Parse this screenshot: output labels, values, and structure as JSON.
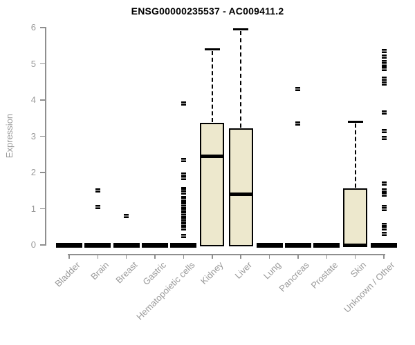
{
  "header": {
    "title": "ENSG00000235537 - AC009411.2"
  },
  "chart_data": {
    "type": "boxplot",
    "title": "ENSG00000235537 - AC009411.2",
    "xlabel": "",
    "ylabel": "Expression",
    "ylim": [
      0,
      6
    ],
    "yticks": [
      0,
      1,
      2,
      3,
      4,
      5,
      6
    ],
    "grid": "off",
    "box_fill_color": "#EDE8CD",
    "box_border_color": "#000000",
    "axis_color": "#8f8f8f",
    "label_color": "#999999",
    "categories": [
      "Bladder",
      "Brain",
      "Breast",
      "Gastric",
      "Hematopoietic cells",
      "Kidney",
      "Liver",
      "Lung",
      "Pancreas",
      "Prostate",
      "Skin",
      "Unknown / Other"
    ],
    "series": [
      {
        "name": "Bladder",
        "q1": 0,
        "median": 0,
        "q3": 0,
        "whisker_low": 0,
        "whisker_high": 0,
        "outliers": []
      },
      {
        "name": "Brain",
        "q1": 0,
        "median": 0,
        "q3": 0,
        "whisker_low": 0,
        "whisker_high": 0,
        "outliers": [
          1.5,
          1.05
        ]
      },
      {
        "name": "Breast",
        "q1": 0,
        "median": 0,
        "q3": 0,
        "whisker_low": 0,
        "whisker_high": 0,
        "outliers": [
          0.8
        ]
      },
      {
        "name": "Gastric",
        "q1": 0,
        "median": 0,
        "q3": 0,
        "whisker_low": 0,
        "whisker_high": 0,
        "outliers": []
      },
      {
        "name": "Hematopoietic cells",
        "q1": 0,
        "median": 0,
        "q3": 0,
        "whisker_low": 0,
        "whisker_high": 0,
        "outliers": [
          3.9,
          2.35,
          1.95,
          1.85,
          1.55,
          1.5,
          1.45,
          1.3,
          1.25,
          1.15,
          1.1,
          1.05,
          1.0,
          0.95,
          0.9,
          0.85,
          0.8,
          0.75,
          0.7,
          0.65,
          0.6,
          0.55,
          0.5,
          0.45,
          0.25
        ]
      },
      {
        "name": "Kidney",
        "q1": 0,
        "median": 2.45,
        "q3": 3.35,
        "whisker_low": 0,
        "whisker_high": 5.4,
        "outliers": []
      },
      {
        "name": "Liver",
        "q1": 0,
        "median": 1.4,
        "q3": 3.2,
        "whisker_low": 0,
        "whisker_high": 5.95,
        "outliers": []
      },
      {
        "name": "Lung",
        "q1": 0,
        "median": 0,
        "q3": 0,
        "whisker_low": 0,
        "whisker_high": 0,
        "outliers": []
      },
      {
        "name": "Pancreas",
        "q1": 0,
        "median": 0,
        "q3": 0,
        "whisker_low": 0,
        "whisker_high": 0,
        "outliers": [
          4.3,
          3.35
        ]
      },
      {
        "name": "Prostate",
        "q1": 0,
        "median": 0,
        "q3": 0,
        "whisker_low": 0,
        "whisker_high": 0,
        "outliers": []
      },
      {
        "name": "Skin",
        "q1": 0,
        "median": 0,
        "q3": 1.55,
        "whisker_low": 0,
        "whisker_high": 3.4,
        "outliers": []
      },
      {
        "name": "Unknown / Other",
        "q1": 0,
        "median": 0,
        "q3": 0,
        "whisker_low": 0,
        "whisker_high": 0,
        "outliers": [
          5.35,
          5.2,
          5.05,
          5.0,
          4.9,
          4.85,
          4.6,
          4.45,
          3.65,
          3.15,
          2.95,
          1.7,
          1.5,
          1.4,
          1.05,
          1.0,
          0.55,
          0.5,
          0.45,
          0.3
        ]
      }
    ]
  }
}
